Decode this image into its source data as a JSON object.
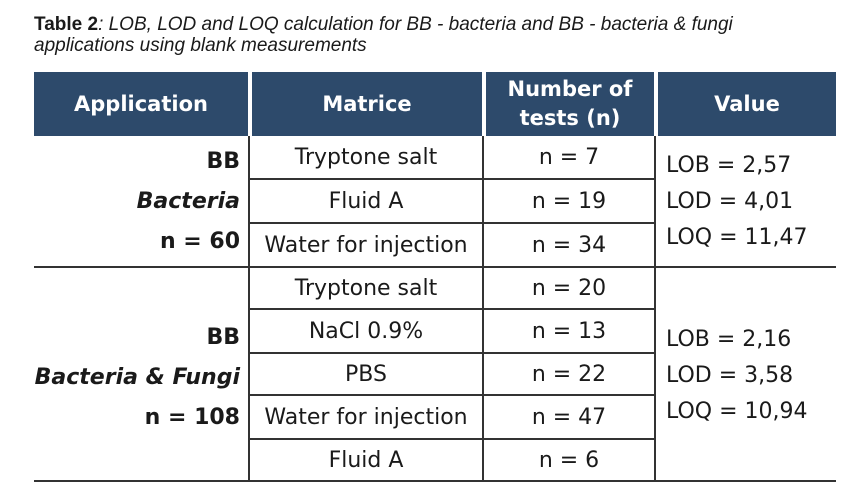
{
  "caption": {
    "label": "Table 2",
    "text": ": LOB, LOD and LOQ calculation for BB - bacteria and BB - bacteria & fungi applications using blank measurements"
  },
  "headers": {
    "application": "Application",
    "matrice": "Matrice",
    "tests_line1": "Number of",
    "tests_line2": "tests (n)",
    "value": "Value"
  },
  "groups": [
    {
      "app_line1": "BB",
      "app_line2": "Bacteria",
      "app_line3": "n = 60",
      "rows": [
        {
          "matrice": "Tryptone salt",
          "n": "n = 7"
        },
        {
          "matrice": "Fluid A",
          "n": "n = 19"
        },
        {
          "matrice": "Water for injection",
          "n": "n = 34"
        }
      ],
      "values": [
        "LOB = 2,57",
        "LOD = 4,01",
        "LOQ = 11,47"
      ]
    },
    {
      "app_line1": "BB",
      "app_line2": "Bacteria & Fungi",
      "app_line3": "n = 108",
      "rows": [
        {
          "matrice": "Tryptone salt",
          "n": "n = 20"
        },
        {
          "matrice": "NaCl 0.9%",
          "n": "n = 13"
        },
        {
          "matrice": "PBS",
          "n": "n = 22"
        },
        {
          "matrice": "Water for injection",
          "n": "n = 47"
        },
        {
          "matrice": "Fluid A",
          "n": "n = 6"
        }
      ],
      "values": [
        "LOB = 2,16",
        "LOD = 3,58",
        "LOQ = 10,94"
      ]
    }
  ]
}
